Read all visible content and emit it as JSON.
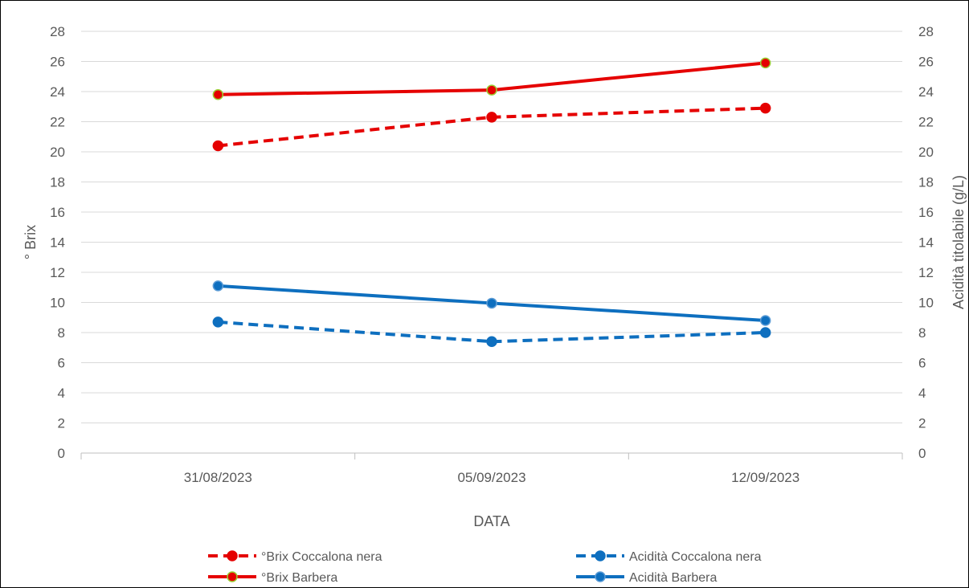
{
  "chart_data": {
    "type": "line",
    "title": "",
    "categories": [
      "31/08/2023",
      "05/09/2023",
      "12/09/2023"
    ],
    "xlabel": "DATA",
    "ylabel": "° Brix",
    "y2label": "Acidità  titolabile (g/L)",
    "ylim": [
      0,
      28
    ],
    "y2lim": [
      0,
      28
    ],
    "yticks": [
      "0",
      "2",
      "4",
      "6",
      "8",
      "10",
      "12",
      "14",
      "16",
      "18",
      "20",
      "22",
      "24",
      "26",
      "28"
    ],
    "y2ticks": [
      "0",
      "2",
      "4",
      "6",
      "8",
      "10",
      "12",
      "14",
      "16",
      "18",
      "20",
      "22",
      "24",
      "26",
      "28"
    ],
    "grid": true,
    "legend_position": "bottom",
    "series": [
      {
        "name": "°Brix Coccalona nera",
        "values": [
          20.4,
          22.3,
          22.9
        ],
        "color": "#e50000",
        "marker_edge": "#e50000",
        "style": "dashed",
        "axis": "left"
      },
      {
        "name": "Acidità Coccalona nera",
        "values": [
          8.7,
          7.4,
          8.0
        ],
        "color": "#0e6fbf",
        "marker_edge": "#0e6fbf",
        "style": "dashed",
        "axis": "right"
      },
      {
        "name": "°Brix Barbera",
        "values": [
          23.8,
          24.1,
          25.9
        ],
        "color": "#e50000",
        "marker_edge": "#9acd32",
        "style": "solid",
        "axis": "left"
      },
      {
        "name": "Acidità Barbera",
        "values": [
          11.1,
          9.95,
          8.8
        ],
        "color": "#0e6fbf",
        "marker_edge": "#5b9bd5",
        "style": "solid",
        "axis": "right"
      }
    ],
    "colors": {
      "gridline": "#d9d9d9",
      "axis_line": "#bfbfbf",
      "text": "#595959"
    }
  }
}
